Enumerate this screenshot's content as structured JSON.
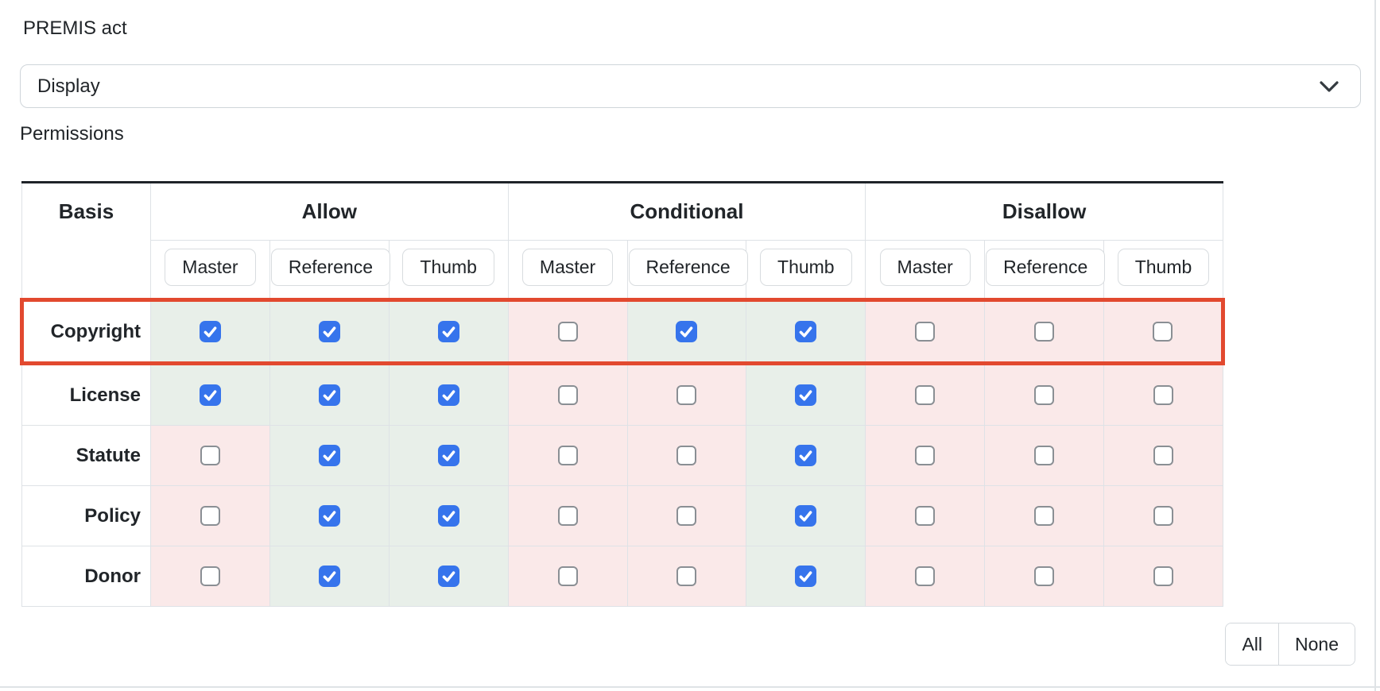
{
  "form": {
    "premis_label": "PREMIS act",
    "premis_value": "Display",
    "permissions_label": "Permissions"
  },
  "icons": {
    "select_chevron": "chevron-down"
  },
  "table": {
    "basis_header": "Basis",
    "groups": [
      {
        "label": "Allow"
      },
      {
        "label": "Conditional"
      },
      {
        "label": "Disallow"
      }
    ],
    "subcolumns": [
      "Master",
      "Reference",
      "Thumb"
    ],
    "rows": [
      {
        "basis": "Copyright",
        "highlighted": true,
        "checks": [
          true,
          true,
          true,
          false,
          true,
          true,
          false,
          false,
          false
        ]
      },
      {
        "basis": "License",
        "highlighted": false,
        "checks": [
          true,
          true,
          true,
          false,
          false,
          true,
          false,
          false,
          false
        ]
      },
      {
        "basis": "Statute",
        "highlighted": false,
        "checks": [
          false,
          true,
          true,
          false,
          false,
          true,
          false,
          false,
          false
        ]
      },
      {
        "basis": "Policy",
        "highlighted": false,
        "checks": [
          false,
          true,
          true,
          false,
          false,
          true,
          false,
          false,
          false
        ]
      },
      {
        "basis": "Donor",
        "highlighted": false,
        "checks": [
          false,
          true,
          true,
          false,
          false,
          true,
          false,
          false,
          false
        ]
      }
    ]
  },
  "actions": {
    "all_label": "All",
    "none_label": "None"
  },
  "colors": {
    "checked_cell_bg": "#e8efe9",
    "unchecked_cell_bg": "#fae9e9",
    "checkbox_checked": "#3674ec",
    "highlight_border": "#e2492f"
  }
}
